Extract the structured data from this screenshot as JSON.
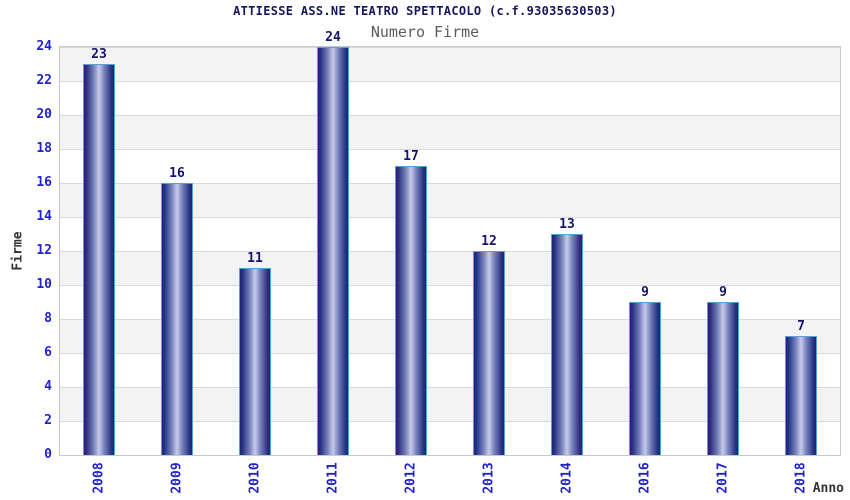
{
  "chart_data": {
    "type": "bar",
    "title": "ATTIESSE ASS.NE TEATRO SPETTACOLO (c.f.93035630503)",
    "subtitle": "Numero Firme",
    "xlabel": "Anno",
    "ylabel": "Firme",
    "categories": [
      "2008",
      "2009",
      "2010",
      "2011",
      "2012",
      "2013",
      "2014",
      "2016",
      "2017",
      "2018"
    ],
    "values": [
      23,
      16,
      11,
      24,
      17,
      12,
      13,
      9,
      9,
      7
    ],
    "ylim": [
      0,
      24
    ],
    "ytick_step": 2,
    "grid": true,
    "legend_position": "none",
    "background_bands": "alternating white and light-gray horizontal bands, 2 units each"
  },
  "colors": {
    "title": "#16165c",
    "subtitle": "#5c5c5c",
    "tick_label": "#2222cc",
    "value_label": "#15156b",
    "axis_title": "#333333",
    "bar_dark": "#1e2474",
    "bar_mid": "#7d87c0",
    "bar_light": "#c6cce8",
    "bar_border": "#55a0dd",
    "band_gray": "#f3f3f3",
    "grid_line": "#dadada",
    "plot_border": "#c8c8c8"
  }
}
